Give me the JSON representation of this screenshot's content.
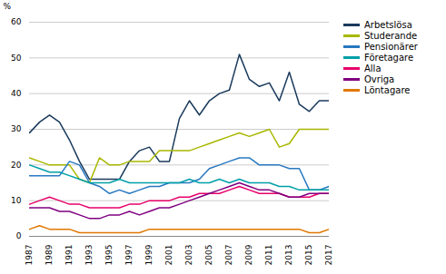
{
  "chart_data": {
    "type": "line",
    "ylabel": "%",
    "x": [
      1987,
      1988,
      1989,
      1990,
      1991,
      1992,
      1993,
      1994,
      1995,
      1996,
      1997,
      1998,
      1999,
      2000,
      2001,
      2002,
      2003,
      2004,
      2005,
      2006,
      2007,
      2008,
      2009,
      2010,
      2011,
      2012,
      2013,
      2014,
      2015,
      2016,
      2017
    ],
    "series": [
      {
        "name": "Arbetslösa",
        "color": "#1a3a5c",
        "values": [
          29,
          32,
          34,
          32,
          27,
          21,
          16,
          16,
          16,
          16,
          21,
          24,
          25,
          21,
          21,
          33,
          38,
          34,
          38,
          40,
          41,
          51,
          44,
          42,
          43,
          38,
          46,
          37,
          35,
          38,
          38
        ]
      },
      {
        "name": "Studerande",
        "color": "#a8b800",
        "values": [
          22,
          21,
          20,
          20,
          20,
          16,
          15,
          22,
          20,
          20,
          21,
          21,
          21,
          24,
          24,
          24,
          24,
          25,
          26,
          27,
          28,
          29,
          28,
          29,
          30,
          25,
          26,
          30,
          30,
          30,
          30
        ]
      },
      {
        "name": "Pensionärer",
        "color": "#2878c0",
        "values": [
          17,
          17,
          17,
          17,
          21,
          20,
          15,
          14,
          12,
          13,
          12,
          13,
          14,
          14,
          15,
          15,
          15,
          16,
          19,
          20,
          21,
          22,
          22,
          20,
          20,
          20,
          19,
          19,
          13,
          13,
          14
        ]
      },
      {
        "name": "Företagare",
        "color": "#00a0a8",
        "values": [
          20,
          19,
          18,
          18,
          17,
          16,
          15,
          15,
          15,
          16,
          15,
          15,
          15,
          15,
          15,
          15,
          16,
          15,
          15,
          16,
          15,
          16,
          15,
          15,
          15,
          14,
          14,
          13,
          13,
          13,
          13
        ]
      },
      {
        "name": "Alla",
        "color": "#e8006a",
        "values": [
          9,
          10,
          11,
          10,
          9,
          9,
          8,
          8,
          8,
          8,
          9,
          9,
          10,
          10,
          10,
          11,
          11,
          12,
          12,
          12,
          13,
          14,
          13,
          12,
          12,
          12,
          11,
          11,
          11,
          12,
          12
        ]
      },
      {
        "name": "Övriga",
        "color": "#800080",
        "values": [
          8,
          8,
          8,
          7,
          7,
          6,
          5,
          5,
          6,
          6,
          7,
          6,
          7,
          8,
          8,
          9,
          10,
          11,
          12,
          13,
          14,
          15,
          14,
          13,
          13,
          12,
          11,
          11,
          12,
          12,
          12
        ]
      },
      {
        "name": "Löntagare",
        "color": "#e07800",
        "values": [
          2,
          3,
          2,
          2,
          2,
          1,
          1,
          1,
          1,
          1,
          1,
          1,
          2,
          2,
          2,
          2,
          2,
          2,
          2,
          2,
          2,
          2,
          2,
          2,
          2,
          2,
          2,
          2,
          1,
          1,
          2
        ]
      }
    ],
    "xlim": [
      1987,
      2017
    ],
    "xticks": [
      1987,
      1989,
      1991,
      1993,
      1995,
      1997,
      1999,
      2001,
      2003,
      2005,
      2007,
      2009,
      2011,
      2013,
      2015,
      2017
    ],
    "ylim": [
      0,
      60
    ],
    "yticks": [
      0,
      10,
      20,
      30,
      40,
      50,
      60
    ],
    "grid": "y",
    "legend": "right"
  }
}
